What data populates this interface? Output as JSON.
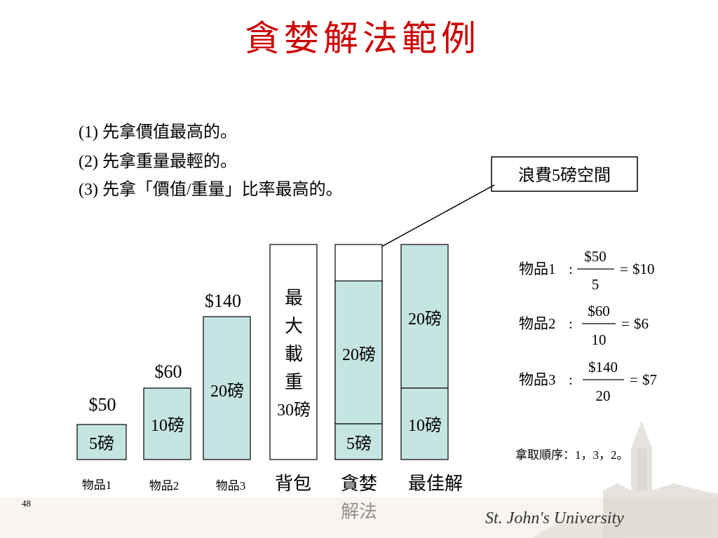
{
  "title": "貪婪解法範例",
  "rules": [
    "(1) 先拿價值最高的。",
    "(2) 先拿重量最輕的。",
    "(3) 先拿「價值/重量」比率最高的。"
  ],
  "callout": "浪費5磅空間",
  "items": [
    {
      "price": "$50",
      "weight": "5磅",
      "label": "物品1"
    },
    {
      "price": "$60",
      "weight": "10磅",
      "label": "物品2"
    },
    {
      "price": "$140",
      "weight": "20磅",
      "label": "物品3"
    }
  ],
  "knapsack": {
    "lines": [
      "最",
      "大",
      "載",
      "重",
      "30磅"
    ],
    "label": "背包"
  },
  "greedy": {
    "upper": "20磅",
    "lower": "5磅",
    "label_line1": "貪婪",
    "label_line2": "解法"
  },
  "best": {
    "upper": "20磅",
    "lower": "10磅",
    "label": "最佳解"
  },
  "ratios": [
    {
      "name": "物品1",
      "sep": ":",
      "num": "$50",
      "den": "5",
      "result": "$10"
    },
    {
      "name": "物品2",
      "sep": ":",
      "num": "$60",
      "den": "10",
      "result": "$6"
    },
    {
      "name": "物品3",
      "sep": ":",
      "num": "$140",
      "den": "20",
      "result": "$7"
    }
  ],
  "equals": "=",
  "order": "拿取順序：1，3，2。",
  "page_number": "48",
  "footer_logo": "St. John's University",
  "colors": {
    "title": "#cc0000",
    "box_fill": "#c5e5e2",
    "outline": "#000000",
    "text": "#000000"
  }
}
